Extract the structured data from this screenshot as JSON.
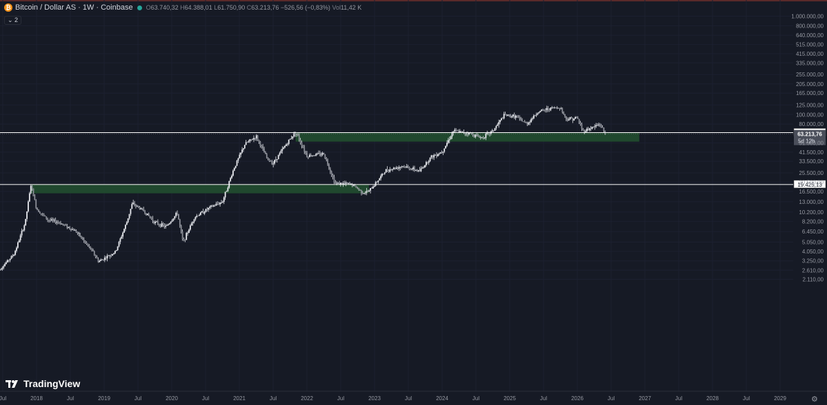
{
  "header": {
    "coin_icon": "bitcoin-icon",
    "symbol": "Bitcoin / Dollar AS · 1W · Coinbase",
    "open_label": "O",
    "open": "63.740,32",
    "high_label": "H",
    "high": "64.388,01",
    "low_label": "L",
    "low": "61.750,90",
    "close_label": "C",
    "close": "63.213,76",
    "change": "−526,56 (−0,83%)",
    "vol_label": "Vol",
    "vol": "11,42 K"
  },
  "indicator_toggle": "2",
  "logo": "TradingView",
  "colors": {
    "background": "#161a25",
    "grid": "#1c2030",
    "candle": "#e9ebf0",
    "zone": "#214e30",
    "axis_text": "#9598a1",
    "level_line": "#ffffff"
  },
  "chart_data": {
    "type": "candlestick",
    "title": "Bitcoin / Dollar AS · 1W · Coinbase",
    "y_scale": "log",
    "y_ticks": [
      "1.000.000,00",
      "800.000,00",
      "640.000,00",
      "515.000,00",
      "415.000,00",
      "335.000,00",
      "255.000,00",
      "205.000,00",
      "165.000,00",
      "125.000,00",
      "100.000,00",
      "80.000,00",
      "51.500,00",
      "41.500,00",
      "33.500,00",
      "25.500,00",
      "20.500,00",
      "16.500,00",
      "13.000,00",
      "10.200,00",
      "8.200,00",
      "6.450,00",
      "5.050,00",
      "4.050,00",
      "3.250,00",
      "2.610,00",
      "2.110,00"
    ],
    "x_ticks": [
      "Jul",
      "2018",
      "Jul",
      "2019",
      "Jul",
      "2020",
      "Jul",
      "2021",
      "Jul",
      "2022",
      "Jul",
      "2023",
      "Jul",
      "2024",
      "Jul",
      "2025",
      "Jul",
      "2026",
      "Jul",
      "2027",
      "Jul",
      "2028",
      "Jul",
      "2029"
    ],
    "levels": [
      {
        "value": 65505.02,
        "label": "65.505,02"
      },
      {
        "value": 19425.13,
        "label": "19.425,13"
      }
    ],
    "current_price": {
      "value": 63213.76,
      "label": "63.213,76",
      "countdown": "5d 12h"
    },
    "zones": [
      {
        "from_date": "2021-11",
        "to_date": "2026-12",
        "low": 53000,
        "high": 65500
      },
      {
        "from_date": "2017-12",
        "to_date": "2022-12",
        "low": 15800,
        "high": 19425
      }
    ],
    "price_path": [
      [
        "2017-06",
        2500
      ],
      [
        "2017-09",
        3800
      ],
      [
        "2017-11",
        8000
      ],
      [
        "2017-12",
        19400
      ],
      [
        "2018-01",
        11000
      ],
      [
        "2018-03",
        8500
      ],
      [
        "2018-05",
        8000
      ],
      [
        "2018-08",
        6500
      ],
      [
        "2018-11",
        4000
      ],
      [
        "2018-12",
        3200
      ],
      [
        "2019-03",
        4000
      ],
      [
        "2019-05",
        8000
      ],
      [
        "2019-06",
        12500
      ],
      [
        "2019-08",
        10500
      ],
      [
        "2019-10",
        8000
      ],
      [
        "2019-12",
        7200
      ],
      [
        "2020-02",
        10000
      ],
      [
        "2020-03",
        5000
      ],
      [
        "2020-05",
        9000
      ],
      [
        "2020-08",
        11500
      ],
      [
        "2020-10",
        13000
      ],
      [
        "2020-12",
        28000
      ],
      [
        "2021-02",
        50000
      ],
      [
        "2021-04",
        60000
      ],
      [
        "2021-06",
        35000
      ],
      [
        "2021-07",
        32000
      ],
      [
        "2021-09",
        47000
      ],
      [
        "2021-11",
        67000
      ],
      [
        "2022-01",
        38000
      ],
      [
        "2022-04",
        40000
      ],
      [
        "2022-06",
        20000
      ],
      [
        "2022-09",
        19500
      ],
      [
        "2022-11",
        16000
      ],
      [
        "2022-12",
        16500
      ],
      [
        "2023-03",
        27000
      ],
      [
        "2023-06",
        30000
      ],
      [
        "2023-09",
        26500
      ],
      [
        "2023-11",
        37000
      ],
      [
        "2024-01",
        42000
      ],
      [
        "2024-03",
        68000
      ],
      [
        "2024-06",
        64000
      ],
      [
        "2024-08",
        58000
      ],
      [
        "2024-10",
        68000
      ],
      [
        "2024-12",
        98000
      ],
      [
        "2025-02",
        96000
      ],
      [
        "2025-04",
        80000
      ],
      [
        "2025-06",
        106000
      ],
      [
        "2025-08",
        115000
      ],
      [
        "2025-10",
        118000
      ],
      [
        "2025-11",
        90000
      ],
      [
        "2026-01",
        92000
      ],
      [
        "2026-02",
        68000
      ],
      [
        "2026-04",
        75000
      ],
      [
        "2026-05",
        80000
      ],
      [
        "2026-06",
        63200
      ]
    ]
  }
}
